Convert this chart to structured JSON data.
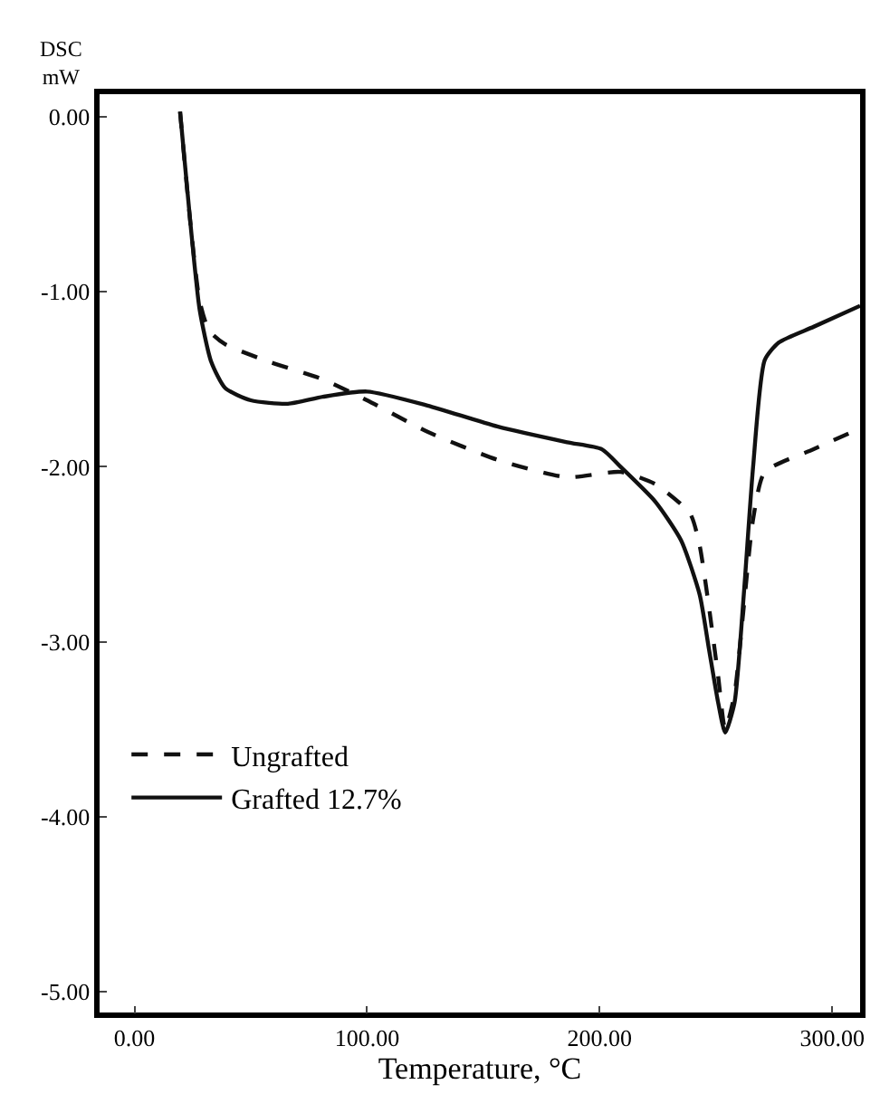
{
  "chart_data": {
    "type": "line",
    "xlabel": "Temperature, °C",
    "ylabel": "DSC\nmW",
    "xlim": [
      -15,
      312
    ],
    "ylim": [
      -5.12,
      0.13
    ],
    "xticks": [
      {
        "value": 0,
        "label": "0.00"
      },
      {
        "value": 100,
        "label": "100.00"
      },
      {
        "value": 200,
        "label": "200.00"
      },
      {
        "value": 300,
        "label": "300.00"
      }
    ],
    "yticks": [
      {
        "value": 0,
        "label": "0.00"
      },
      {
        "value": -1,
        "label": "-1.00"
      },
      {
        "value": -2,
        "label": "-2.00"
      },
      {
        "value": -3,
        "label": "-3.00"
      },
      {
        "value": -4,
        "label": "-4.00"
      },
      {
        "value": -5,
        "label": "-5.00"
      }
    ],
    "legend": "bottom left",
    "series": [
      {
        "name": "Ungrafted",
        "color": "#111111",
        "line_style": "dashed",
        "x": [
          19.6,
          24,
          28,
          32,
          39,
          58,
          81,
          100,
          126,
          156,
          186,
          209,
          224,
          239,
          243,
          247,
          251,
          254,
          258,
          262,
          266,
          271,
          292,
          312
        ],
        "values": [
          0.03,
          -0.6,
          -1.05,
          -1.22,
          -1.3,
          -1.4,
          -1.5,
          -1.62,
          -1.8,
          -1.96,
          -2.06,
          -2.03,
          -2.1,
          -2.27,
          -2.45,
          -2.8,
          -3.2,
          -3.5,
          -3.3,
          -2.8,
          -2.3,
          -2.03,
          -1.9,
          -1.78
        ]
      },
      {
        "name": "Grafted 12.7%",
        "color": "#111111",
        "line_style": "solid",
        "x": [
          19.6,
          24,
          28,
          33,
          39,
          50,
          66,
          81,
          100,
          126,
          156,
          186,
          201,
          209,
          224,
          235,
          243,
          247,
          251,
          254,
          258,
          262,
          266,
          271,
          277,
          292,
          312
        ],
        "values": [
          0.03,
          -0.6,
          -1.1,
          -1.4,
          -1.55,
          -1.62,
          -1.64,
          -1.6,
          -1.57,
          -1.65,
          -1.77,
          -1.86,
          -1.9,
          -2.0,
          -2.2,
          -2.42,
          -2.73,
          -3.04,
          -3.35,
          -3.52,
          -3.35,
          -2.73,
          -2.0,
          -1.39,
          -1.29,
          -1.2,
          -1.08
        ]
      }
    ]
  }
}
